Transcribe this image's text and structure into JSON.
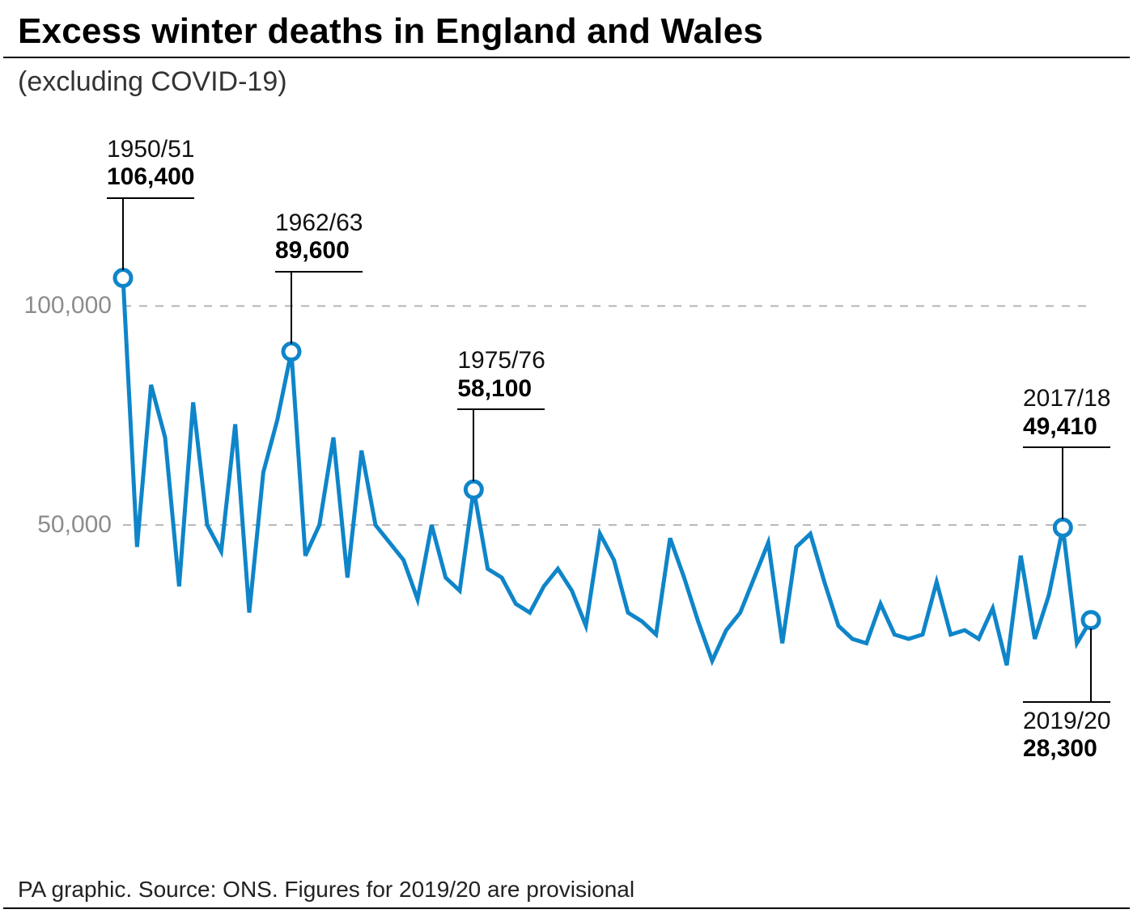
{
  "header": {
    "title": "Excess winter deaths in England and Wales",
    "subtitle": "(excluding COVID-19)"
  },
  "footer": {
    "caption": "PA graphic. Source: ONS. Figures for 2019/20 are provisional"
  },
  "chart": {
    "type": "line",
    "background_color": "#ffffff",
    "line_color": "#0f85c9",
    "line_width": 5,
    "grid_color": "#b5b5b5",
    "grid_dash": "10,10",
    "axis_label_color": "#8c8c8c",
    "axis_label_fontsize": 30,
    "ymin": 0,
    "ymax": 120000,
    "yticks": [
      50000,
      100000
    ],
    "ytick_labels": [
      "50,000",
      "100,000"
    ],
    "x_start_year": 1950,
    "x_end_year": 2019,
    "values": [
      106400,
      45000,
      82000,
      70000,
      36000,
      78000,
      50000,
      44000,
      73000,
      30000,
      62000,
      74000,
      89600,
      43000,
      50000,
      70000,
      38000,
      67000,
      50000,
      46000,
      42000,
      33000,
      50000,
      38000,
      35000,
      58100,
      40000,
      38000,
      32000,
      30000,
      36000,
      40000,
      35000,
      27000,
      48000,
      42000,
      30000,
      28000,
      25000,
      47000,
      38000,
      28000,
      19000,
      26000,
      30000,
      38000,
      46000,
      23000,
      45000,
      48000,
      37000,
      27000,
      24000,
      23000,
      32000,
      25000,
      24000,
      25000,
      37000,
      25000,
      26000,
      24000,
      31000,
      18000,
      43000,
      24000,
      34000,
      49410,
      23000,
      28300
    ],
    "markers": [
      {
        "year": 1950,
        "value": 106400
      },
      {
        "year": 1962,
        "value": 89600
      },
      {
        "year": 1975,
        "value": 58100
      },
      {
        "year": 2017,
        "value": 49410
      },
      {
        "year": 2019,
        "value": 28300
      }
    ],
    "marker_fill": "#ffffff",
    "marker_stroke": "#0f85c9",
    "marker_stroke_width": 5,
    "marker_radius": 10,
    "callouts": [
      {
        "year_label": "1950/51",
        "value_label": "106,400",
        "year": 1950,
        "pos": "above"
      },
      {
        "year_label": "1962/63",
        "value_label": "89,600",
        "year": 1962,
        "pos": "above"
      },
      {
        "year_label": "1975/76",
        "value_label": "58,100",
        "year": 1975,
        "pos": "above"
      },
      {
        "year_label": "2017/18",
        "value_label": "49,410",
        "year": 2017,
        "pos": "above"
      },
      {
        "year_label": "2019/20",
        "value_label": "28,300",
        "year": 2019,
        "pos": "below"
      }
    ],
    "callout_fontsize": 30,
    "callout_color": "#000000"
  }
}
